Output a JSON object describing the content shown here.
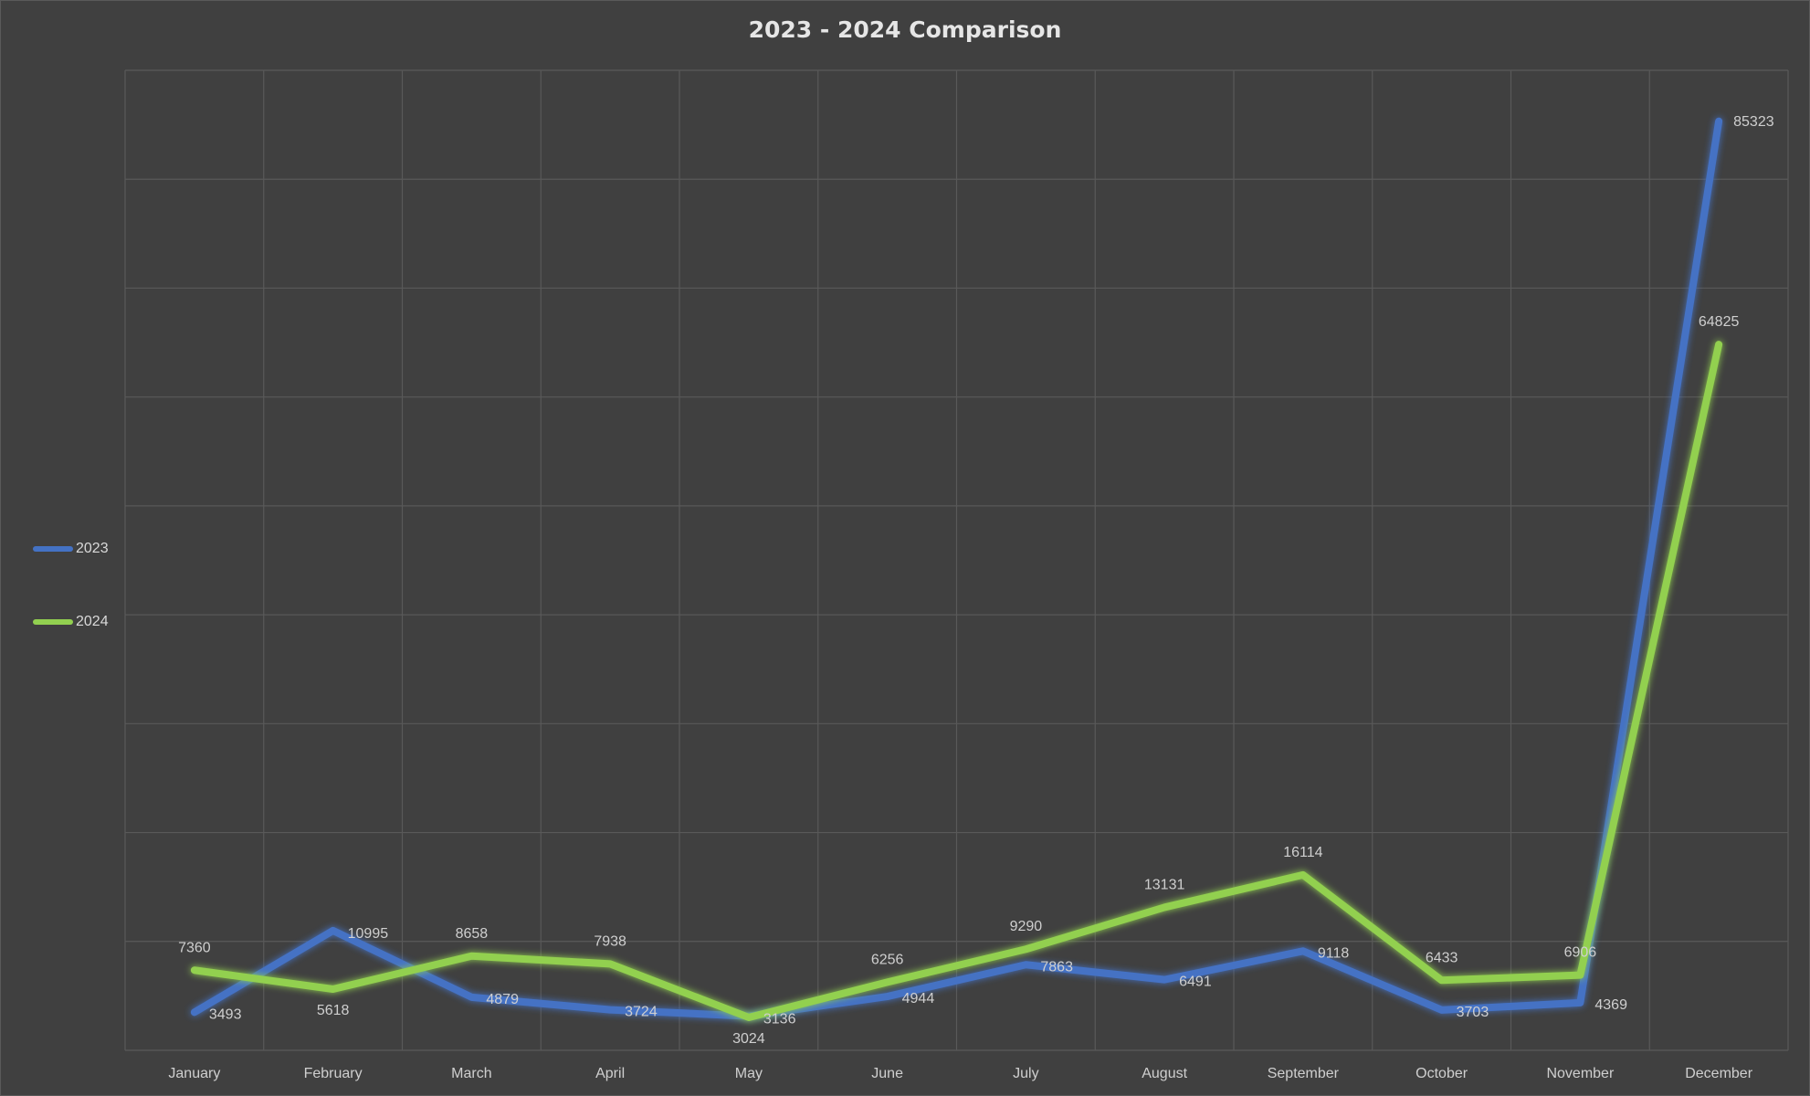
{
  "chart_data": {
    "type": "line",
    "title": "2023 - 2024 Comparison",
    "xlabel": "",
    "ylabel": "",
    "categories": [
      "January",
      "February",
      "March",
      "April",
      "May",
      "June",
      "July",
      "August",
      "September",
      "October",
      "November",
      "December"
    ],
    "series": [
      {
        "name": "2023",
        "color": "#4472c4",
        "values": [
          3493,
          10995,
          4879,
          3724,
          3136,
          4944,
          7863,
          6491,
          9118,
          3703,
          4369,
          85323
        ]
      },
      {
        "name": "2024",
        "color": "#92d050",
        "values": [
          7360,
          5618,
          8658,
          7938,
          3024,
          6256,
          9290,
          13131,
          16114,
          6433,
          6906,
          64825
        ]
      }
    ],
    "data_labels": {
      "2023": [
        "3493",
        "10995",
        "4879",
        "3724",
        "3136",
        "4944",
        "7863",
        "6491",
        "9118",
        "3703",
        "4369",
        "85323"
      ],
      "2024": [
        "7360",
        "5618",
        "8658",
        "7938",
        "3024",
        "6256",
        "9290",
        "13131",
        "16114",
        "6433",
        "6906",
        "64825"
      ]
    },
    "ylim": [
      0,
      90000
    ],
    "y_axis_labels_visible": false,
    "grid": true,
    "legend_position": "left"
  }
}
